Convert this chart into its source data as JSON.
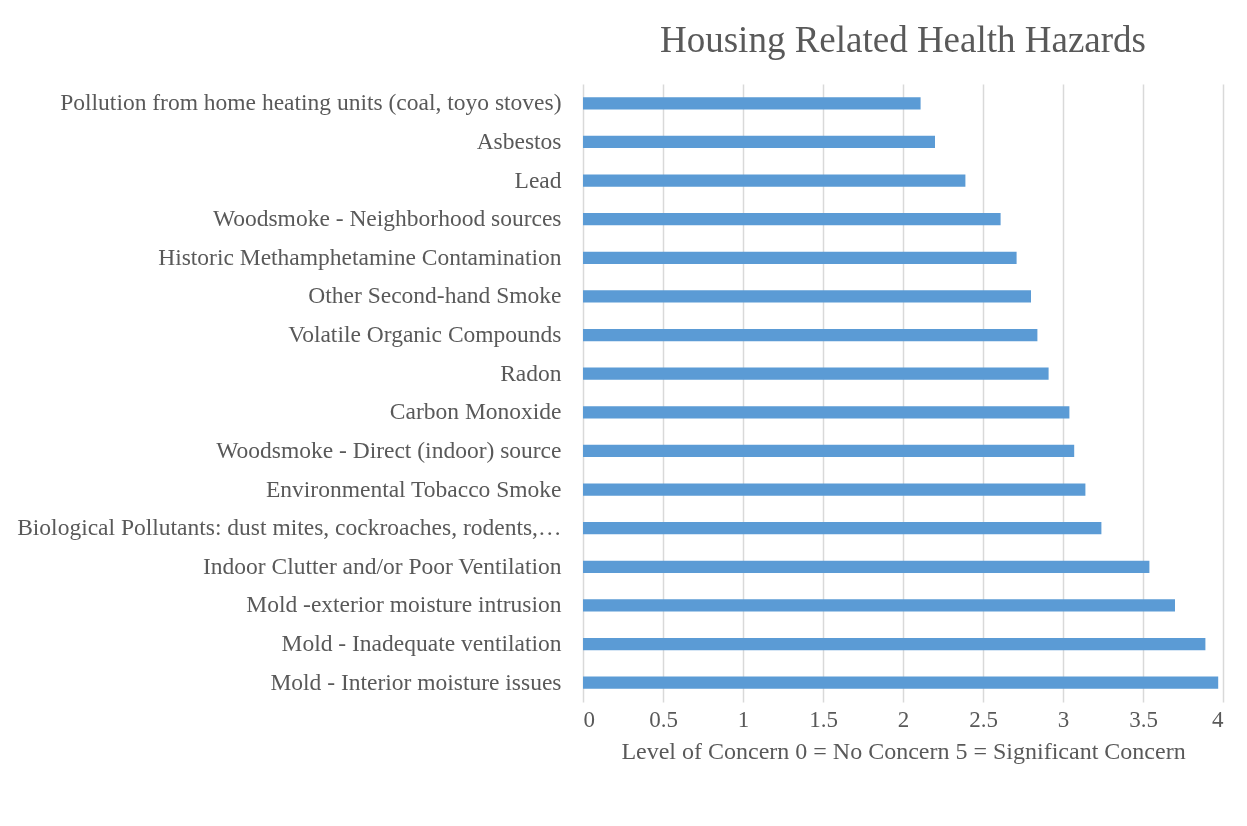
{
  "chart_data": {
    "type": "bar",
    "orientation": "horizontal",
    "title": "Housing Related Health Hazards",
    "xlabel": "Level of Concern 0 = No Concern 5 = Significant Concern",
    "categories": [
      "Pollution from home heating units (coal, toyo stoves)",
      "Asbestos",
      "Lead",
      "Woodsmoke - Neighborhood sources",
      "Historic Methamphetamine Contamination",
      "Other Second-hand Smoke",
      "Volatile Organic Compounds",
      "Radon",
      "Carbon Monoxide",
      "Woodsmoke - Direct (indoor) source",
      "Environmental Tobacco Smoke",
      "Biological Pollutants: dust mites, cockroaches, rodents,…",
      "Indoor Clutter and/or Poor Ventilation",
      "Mold -exterior moisture intrusion",
      "Mold - Inadequate ventilation",
      "Mold - Interior moisture issues"
    ],
    "values": [
      2.11,
      2.2,
      2.39,
      2.61,
      2.71,
      2.8,
      2.84,
      2.91,
      3.04,
      3.07,
      3.14,
      3.24,
      3.54,
      3.7,
      3.89,
      3.97
    ],
    "color": "#5b9bd5",
    "xlim": [
      0,
      4
    ],
    "xticks": [
      0,
      0.5,
      1,
      1.5,
      2,
      2.5,
      3,
      3.5,
      4
    ],
    "grid": "x"
  }
}
